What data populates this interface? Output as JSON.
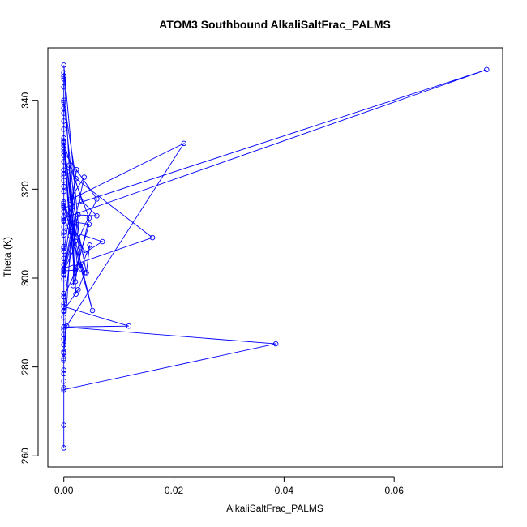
{
  "chart_data": {
    "type": "line",
    "title": "ATOM3 Southbound AlkaliSaltFrac_PALMS",
    "xlabel": "AlkaliSaltFrac_PALMS",
    "ylabel": "Theta (K)",
    "xlim": [
      -0.0029,
      0.0797
    ],
    "ylim": [
      257.5,
      351.8
    ],
    "x_ticks": [
      0.0,
      0.02,
      0.04,
      0.06
    ],
    "x_tick_labels": [
      "0.00",
      "0.02",
      "0.04",
      "0.06"
    ],
    "y_ticks": [
      260,
      280,
      300,
      320,
      340
    ],
    "y_tick_labels": [
      "260",
      "280",
      "300",
      "320",
      "340"
    ],
    "marker": "open-circle",
    "grid": false,
    "legend": "none",
    "series": [
      {
        "color": "#0000ff",
        "x": [
          0,
          0,
          0,
          0,
          0.0768,
          0,
          0,
          0,
          0,
          0,
          0.0012,
          0,
          0.0023,
          0,
          0,
          0.0037,
          0.0011,
          0.0218,
          0.0005,
          0,
          0.0016,
          0.001,
          0.0046,
          0.0017,
          0.0019,
          0,
          0.0026,
          0.0038,
          0,
          0,
          0.006,
          0,
          0.0021,
          0.0046,
          0,
          0,
          0.0025,
          0.0006,
          0.0041,
          0.0047,
          0.0031,
          0.0018,
          0,
          0.0022,
          0.0161,
          0,
          0,
          0.0022,
          0,
          0.003,
          0.0021,
          0,
          0.0021,
          0.0052,
          0.0013,
          0,
          0.0038,
          0.007,
          0.0013,
          0,
          0.0023,
          0,
          0.0033,
          0.006,
          0.0026,
          0,
          0,
          0.0118,
          0,
          0.0385,
          0,
          0,
          0,
          0,
          0,
          0,
          0,
          0,
          0,
          0,
          0,
          0,
          0,
          0,
          0,
          0,
          0,
          0,
          0,
          0,
          0,
          0,
          0,
          0,
          0,
          0,
          0,
          0,
          0,
          0,
          0,
          0,
          0,
          0,
          0,
          0,
          0,
          0,
          0,
          0,
          0,
          0,
          0,
          0,
          0,
          0,
          0
        ],
        "y": [
          261.8,
          274.8,
          285.0,
          315.8,
          346.9,
          313.5,
          322.9,
          316.2,
          330.5,
          329.8,
          309.5,
          302.0,
          324.4,
          306.0,
          301.5,
          322.7,
          317.6,
          330.3,
          289.2,
          283.2,
          316.1,
          325.4,
          313.5,
          298.3,
          312.5,
          292.7,
          297.4,
          301.2,
          313.8,
          328.4,
          317.8,
          301.6,
          301.8,
          312.1,
          313.0,
          295.8,
          302.5,
          323.9,
          301.2,
          307.4,
          302.1,
          318.2,
          340.0,
          322.4,
          309.1,
          302.2,
          330.9,
          296.4,
          347.9,
          306.9,
          299.2,
          330.6,
          308.3,
          292.7,
          310.3,
          316.8,
          305.7,
          308.2,
          310.5,
          316.4,
          309.2,
          330.4,
          317.3,
          314.0,
          314.2,
          301.0,
          293.6,
          289.2,
          289.0,
          285.2,
          274.9,
          278.5,
          281.5,
          283.5,
          287.3,
          291.2,
          294.2,
          299.8,
          304.4,
          307.1,
          309.7,
          311.5,
          315.0,
          319.5,
          323.5,
          326.2,
          329.1,
          333.5,
          335.3,
          337.1,
          339.6,
          344.8,
          346.2,
          345.4,
          343.0,
          338.2,
          331.5,
          327.6,
          324.3,
          322.0,
          320.6,
          317.1,
          312.8,
          310.3,
          306.7,
          303.0,
          300.7,
          296.5,
          292.5,
          288.4,
          286.3,
          283.1,
          281.9,
          279.3,
          276.8,
          275.3,
          266.9
        ]
      }
    ]
  }
}
